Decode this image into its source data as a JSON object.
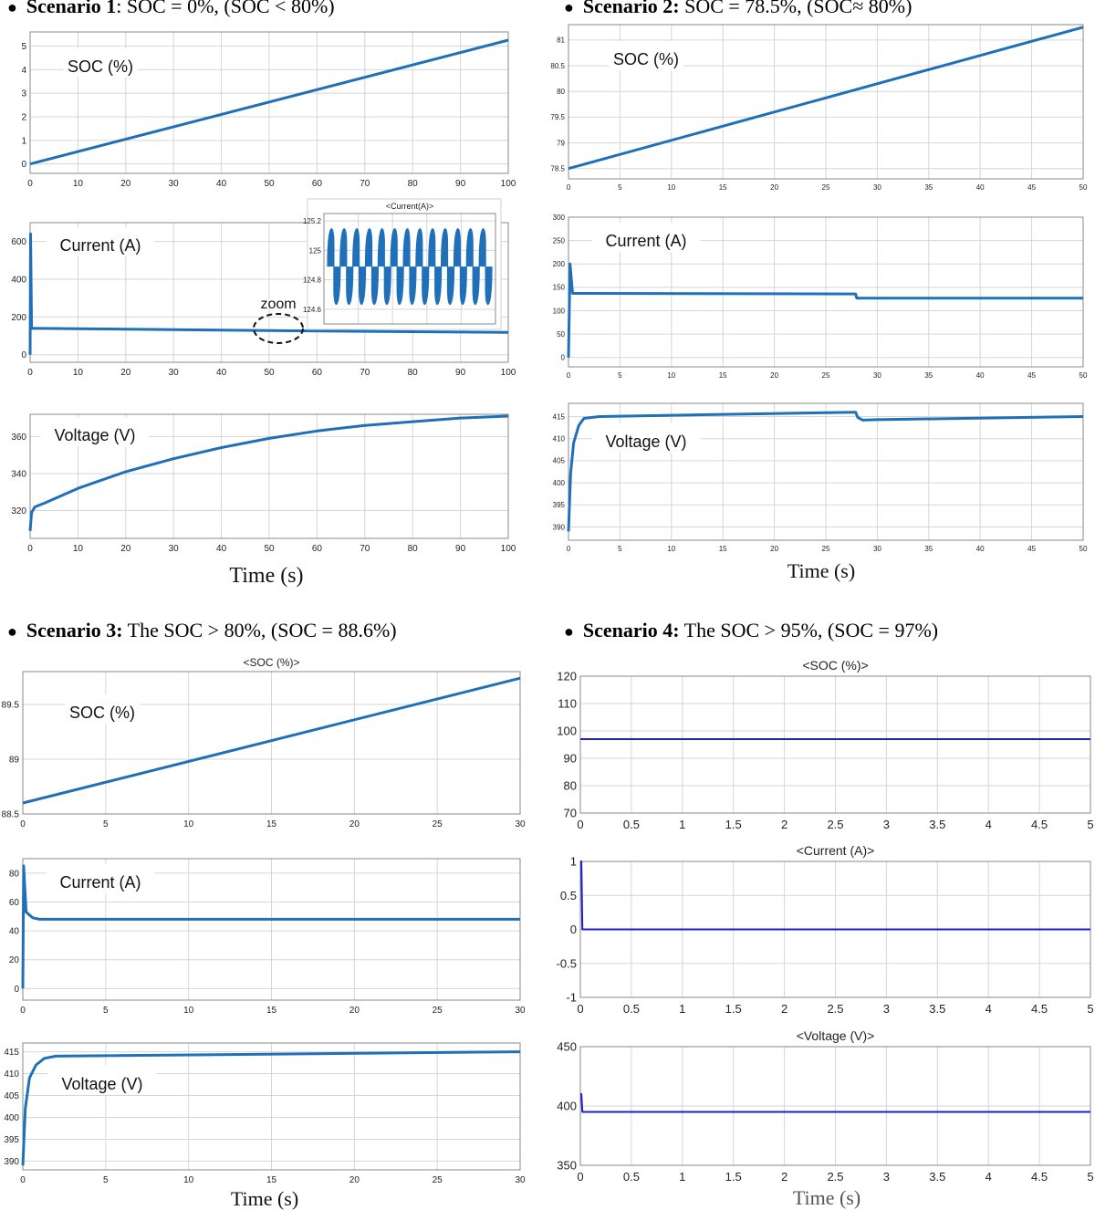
{
  "scenarios": [
    {
      "bold": "Scenario 1",
      "rest": ": SOC = 0%, (SOC < 80%)"
    },
    {
      "bold": "Scenario 2:",
      "rest": " SOC = 78.5%, (SOC≈ 80%)"
    },
    {
      "bold": "Scenario 3:",
      "rest": " The SOC > 80%,  (SOC = 88.6%)"
    },
    {
      "bold": "Scenario 4:",
      "rest": " The SOC > 95%, (SOC = 97%)"
    }
  ],
  "time_label": "Time (s)",
  "colors": {
    "blue": "#1f70b8",
    "dark_blue": "#1c1cd0",
    "grid": "#d6d6d6",
    "frame": "#888888"
  },
  "chart_data": [
    {
      "id": "s1_soc",
      "type": "line",
      "label": "SOC (%)",
      "xlim": [
        0,
        100
      ],
      "ylim": [
        -0.4,
        5.6
      ],
      "xticks": [
        "0",
        "10",
        "20",
        "30",
        "40",
        "50",
        "60",
        "70",
        "80",
        "90",
        "100"
      ],
      "yticks": [
        "0",
        "1",
        "2",
        "3",
        "4",
        "5"
      ],
      "series": [
        {
          "x": [
            0,
            100
          ],
          "y": [
            0,
            5.25
          ]
        }
      ]
    },
    {
      "id": "s1_cur",
      "type": "line",
      "label": "Current (A)",
      "annotation": "zoom",
      "xlim": [
        0,
        100
      ],
      "ylim": [
        -40,
        700
      ],
      "xticks": [
        "0",
        "10",
        "20",
        "30",
        "40",
        "50",
        "60",
        "70",
        "80",
        "90",
        "100"
      ],
      "yticks": [
        "0",
        "200",
        "400",
        "600"
      ],
      "series": [
        {
          "x": [
            0,
            0.1,
            0.3,
            10,
            30,
            50,
            70,
            90,
            100
          ],
          "y": [
            0,
            640,
            140,
            138,
            133,
            128,
            124,
            120,
            118
          ]
        }
      ],
      "inset": {
        "title": "<Current(A)>",
        "yticks": [
          "124.6",
          "124.8",
          "125",
          "125.2"
        ],
        "ylim": [
          124.5,
          125.25
        ],
        "band": [
          124.58,
          125.2
        ],
        "cycles": 13
      }
    },
    {
      "id": "s1_vol",
      "type": "line",
      "label": "Voltage (V)",
      "xlim": [
        0,
        100
      ],
      "ylim": [
        305,
        372
      ],
      "xticks": [
        "0",
        "10",
        "20",
        "30",
        "40",
        "50",
        "60",
        "70",
        "80",
        "90",
        "100"
      ],
      "yticks": [
        "320",
        "340",
        "360"
      ],
      "series": [
        {
          "x": [
            0,
            0.3,
            1,
            3,
            10,
            20,
            30,
            40,
            50,
            60,
            70,
            80,
            90,
            100
          ],
          "y": [
            309,
            319,
            322,
            324,
            332,
            341,
            348,
            354,
            359,
            363,
            366,
            368,
            370,
            371
          ]
        }
      ]
    },
    {
      "id": "s2_soc",
      "type": "line",
      "label": "SOC (%)",
      "xlim": [
        0,
        50
      ],
      "ylim": [
        78.3,
        81.3
      ],
      "xticks": [
        "0",
        "5",
        "10",
        "15",
        "20",
        "25",
        "30",
        "35",
        "40",
        "45",
        "50"
      ],
      "yticks": [
        "78.5",
        "79",
        "79.5",
        "80",
        "80.5",
        "81"
      ],
      "series": [
        {
          "x": [
            0,
            50
          ],
          "y": [
            78.5,
            81.25
          ]
        }
      ]
    },
    {
      "id": "s2_cur",
      "type": "line",
      "label": "Current (A)",
      "xlim": [
        0,
        50
      ],
      "ylim": [
        -20,
        300
      ],
      "xticks": [
        "0",
        "5",
        "10",
        "15",
        "20",
        "25",
        "30",
        "35",
        "40",
        "45",
        "50"
      ],
      "yticks": [
        "0",
        "50",
        "100",
        "150",
        "200",
        "250",
        "300"
      ],
      "series": [
        {
          "x": [
            0,
            0.15,
            0.4,
            27.9,
            28.0,
            50
          ],
          "y": [
            0,
            200,
            137,
            136,
            127,
            127
          ]
        }
      ]
    },
    {
      "id": "s2_vol",
      "type": "line",
      "label": "Voltage (V)",
      "xlim": [
        0,
        50
      ],
      "ylim": [
        387,
        418
      ],
      "xticks": [
        "0",
        "5",
        "10",
        "15",
        "20",
        "25",
        "30",
        "35",
        "40",
        "45",
        "50"
      ],
      "yticks": [
        "390",
        "395",
        "400",
        "405",
        "410",
        "415"
      ],
      "series": [
        {
          "x": [
            0,
            0.2,
            0.5,
            1,
            1.5,
            3,
            10,
            27.9,
            28.1,
            28.6,
            30,
            50
          ],
          "y": [
            389,
            402,
            409,
            413,
            414.6,
            415,
            415.3,
            416,
            414.8,
            414.2,
            414.3,
            415
          ]
        }
      ]
    },
    {
      "id": "s3_soc",
      "type": "line",
      "label": "SOC (%)",
      "title": "<SOC (%)>",
      "xlim": [
        0,
        30
      ],
      "ylim": [
        88.5,
        89.8
      ],
      "xticks": [
        "0",
        "5",
        "10",
        "15",
        "20",
        "25",
        "30"
      ],
      "yticks": [
        "88.5",
        "89",
        "89.5"
      ],
      "series": [
        {
          "x": [
            0,
            30
          ],
          "y": [
            88.6,
            89.74
          ]
        }
      ]
    },
    {
      "id": "s3_cur",
      "type": "line",
      "label": "Current (A)",
      "xlim": [
        0,
        30
      ],
      "ylim": [
        -8,
        90
      ],
      "xticks": [
        "0",
        "5",
        "10",
        "15",
        "20",
        "25",
        "30"
      ],
      "yticks": [
        "0",
        "20",
        "40",
        "60",
        "80"
      ],
      "series": [
        {
          "x": [
            0,
            0.05,
            0.2,
            0.6,
            1,
            30
          ],
          "y": [
            0,
            85,
            53,
            49,
            48,
            48
          ]
        }
      ]
    },
    {
      "id": "s3_vol",
      "type": "line",
      "label": "Voltage (V)",
      "xlim": [
        0,
        30
      ],
      "ylim": [
        388,
        417
      ],
      "xticks": [
        "0",
        "5",
        "10",
        "15",
        "20",
        "25",
        "30"
      ],
      "yticks": [
        "390",
        "395",
        "400",
        "405",
        "410",
        "415"
      ],
      "series": [
        {
          "x": [
            0,
            0.15,
            0.4,
            0.8,
            1.3,
            2,
            30
          ],
          "y": [
            389,
            402,
            409,
            412,
            413.5,
            414,
            415
          ]
        }
      ]
    },
    {
      "id": "s4_soc",
      "type": "line",
      "title": "<SOC (%)>",
      "xlim": [
        0,
        5
      ],
      "ylim": [
        70,
        120
      ],
      "xticks": [
        "0",
        "0.5",
        "1",
        "1.5",
        "2",
        "2.5",
        "3",
        "3.5",
        "4",
        "4.5",
        "5"
      ],
      "yticks": [
        "70",
        "80",
        "90",
        "100",
        "110",
        "120"
      ],
      "series": [
        {
          "x": [
            0,
            5
          ],
          "y": [
            97,
            97
          ]
        }
      ]
    },
    {
      "id": "s4_cur",
      "type": "line",
      "title": "<Current (A)>",
      "xlim": [
        0,
        5
      ],
      "ylim": [
        -1,
        1
      ],
      "xticks": [
        "0",
        "0.5",
        "1",
        "1.5",
        "2",
        "2.5",
        "3",
        "3.5",
        "4",
        "4.5",
        "5"
      ],
      "yticks": [
        "-1",
        "-0.5",
        "0",
        "0.5",
        "1"
      ],
      "series": [
        {
          "x": [
            0,
            0.01,
            0.02,
            5
          ],
          "y": [
            1,
            1,
            0,
            0
          ]
        }
      ]
    },
    {
      "id": "s4_vol",
      "type": "line",
      "title": "<Voltage (V)>",
      "xlim": [
        0,
        5
      ],
      "ylim": [
        350,
        450
      ],
      "xticks": [
        "0",
        "0.5",
        "1",
        "1.5",
        "2",
        "2.5",
        "3",
        "3.5",
        "4",
        "4.5",
        "5"
      ],
      "yticks": [
        "350",
        "400",
        "450"
      ],
      "series": [
        {
          "x": [
            0,
            0.01,
            0.02,
            5
          ],
          "y": [
            410,
            410,
            395,
            395
          ]
        }
      ]
    }
  ]
}
